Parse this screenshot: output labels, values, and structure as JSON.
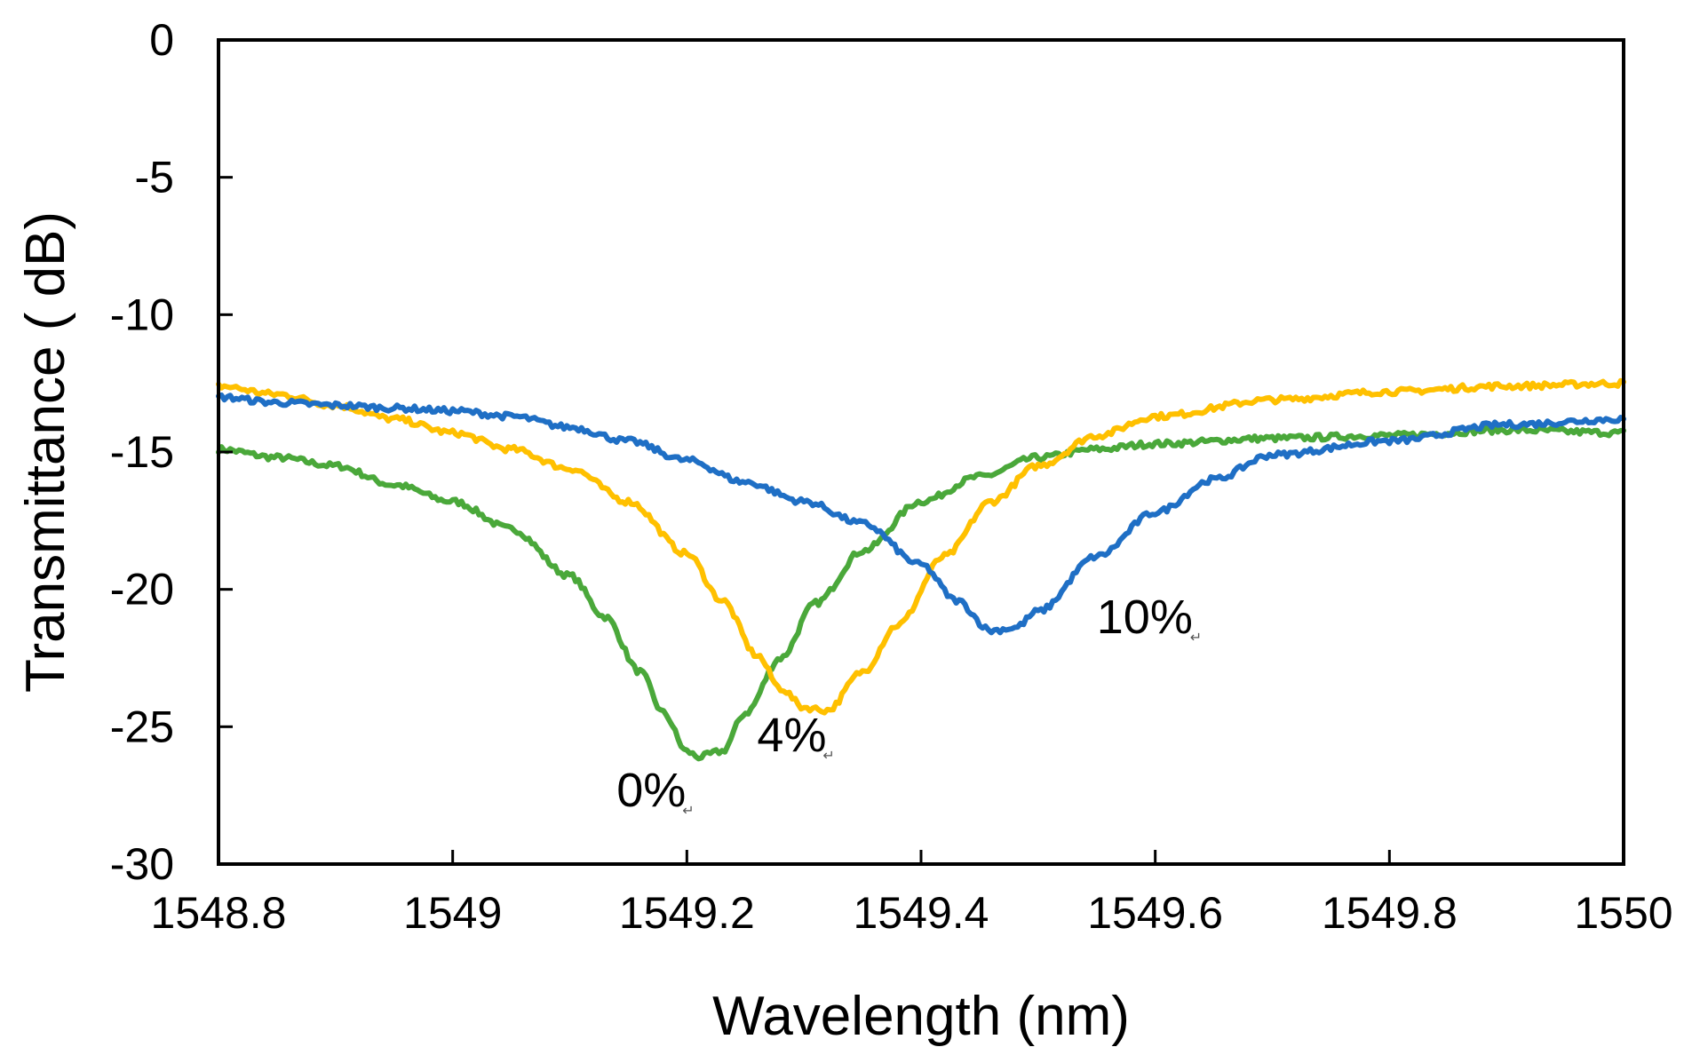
{
  "chart_data": {
    "type": "line",
    "title": "",
    "xlabel": "Wavelength (nm)",
    "ylabel": "Transmittance ( dB)",
    "xlim": [
      1548.8,
      1550
    ],
    "ylim": [
      -30,
      0
    ],
    "xticks": [
      1548.8,
      1549,
      1549.2,
      1549.4,
      1549.6,
      1549.8,
      1550
    ],
    "yticks": [
      0,
      -5,
      -10,
      -15,
      -20,
      -25,
      -30
    ],
    "xtick_labels": [
      "1548.8",
      "1549",
      "1549.2",
      "1549.4",
      "1549.6",
      "1549.8",
      "1550"
    ],
    "ytick_labels": [
      "0",
      "-5",
      "-10",
      "-15",
      "-20",
      "-25",
      "-30"
    ],
    "grid": false,
    "series": [
      {
        "name": "0%",
        "color": "#4aa83a",
        "x": [
          1548.8,
          1548.85,
          1548.9,
          1548.95,
          1549.0,
          1549.05,
          1549.1,
          1549.13,
          1549.16,
          1549.18,
          1549.2,
          1549.21,
          1549.23,
          1549.25,
          1549.28,
          1549.31,
          1549.35,
          1549.4,
          1549.45,
          1549.5,
          1549.55,
          1549.6,
          1549.7,
          1549.8,
          1549.9,
          1550.0
        ],
        "y": [
          -14.9,
          -15.2,
          -15.5,
          -16.2,
          -16.8,
          -17.8,
          -19.5,
          -21.0,
          -23.0,
          -24.5,
          -25.9,
          -26.1,
          -25.9,
          -24.5,
          -22.5,
          -20.5,
          -18.6,
          -16.8,
          -15.9,
          -15.2,
          -14.9,
          -14.7,
          -14.5,
          -14.4,
          -14.2,
          -14.3
        ]
      },
      {
        "name": "4%",
        "color": "#ffc000",
        "x": [
          1548.8,
          1548.85,
          1548.9,
          1548.95,
          1549.0,
          1549.05,
          1549.1,
          1549.15,
          1549.2,
          1549.23,
          1549.26,
          1549.28,
          1549.3,
          1549.32,
          1549.35,
          1549.38,
          1549.42,
          1549.46,
          1549.5,
          1549.55,
          1549.6,
          1549.7,
          1549.8,
          1549.9,
          1550.0
        ],
        "y": [
          -12.6,
          -12.9,
          -13.3,
          -13.8,
          -14.3,
          -14.9,
          -15.6,
          -16.8,
          -18.7,
          -20.4,
          -22.4,
          -23.6,
          -24.3,
          -24.4,
          -23.0,
          -21.3,
          -18.8,
          -16.8,
          -15.5,
          -14.4,
          -13.7,
          -13.1,
          -12.8,
          -12.6,
          -12.5
        ]
      },
      {
        "name": "10%",
        "color": "#1f6fc5",
        "x": [
          1548.8,
          1548.85,
          1548.9,
          1548.95,
          1549.0,
          1549.05,
          1549.1,
          1549.15,
          1549.2,
          1549.25,
          1549.3,
          1549.35,
          1549.4,
          1549.43,
          1549.46,
          1549.48,
          1549.5,
          1549.55,
          1549.6,
          1549.65,
          1549.7,
          1549.8,
          1549.9,
          1550.0
        ],
        "y": [
          -13.0,
          -13.2,
          -13.3,
          -13.4,
          -13.5,
          -13.7,
          -14.1,
          -14.6,
          -15.3,
          -16.1,
          -16.8,
          -17.6,
          -19.1,
          -20.4,
          -21.5,
          -21.4,
          -20.8,
          -18.8,
          -17.2,
          -16.0,
          -15.1,
          -14.6,
          -14.0,
          -13.8
        ]
      }
    ],
    "annotations": [
      {
        "text": "0%",
        "series": "0%",
        "x": 1549.14,
        "y": -27.9
      },
      {
        "text": "4%",
        "series": "4%",
        "x": 1549.26,
        "y": -25.9
      },
      {
        "text": "10%",
        "series": "10%",
        "x": 1549.55,
        "y": -21.6
      }
    ]
  }
}
